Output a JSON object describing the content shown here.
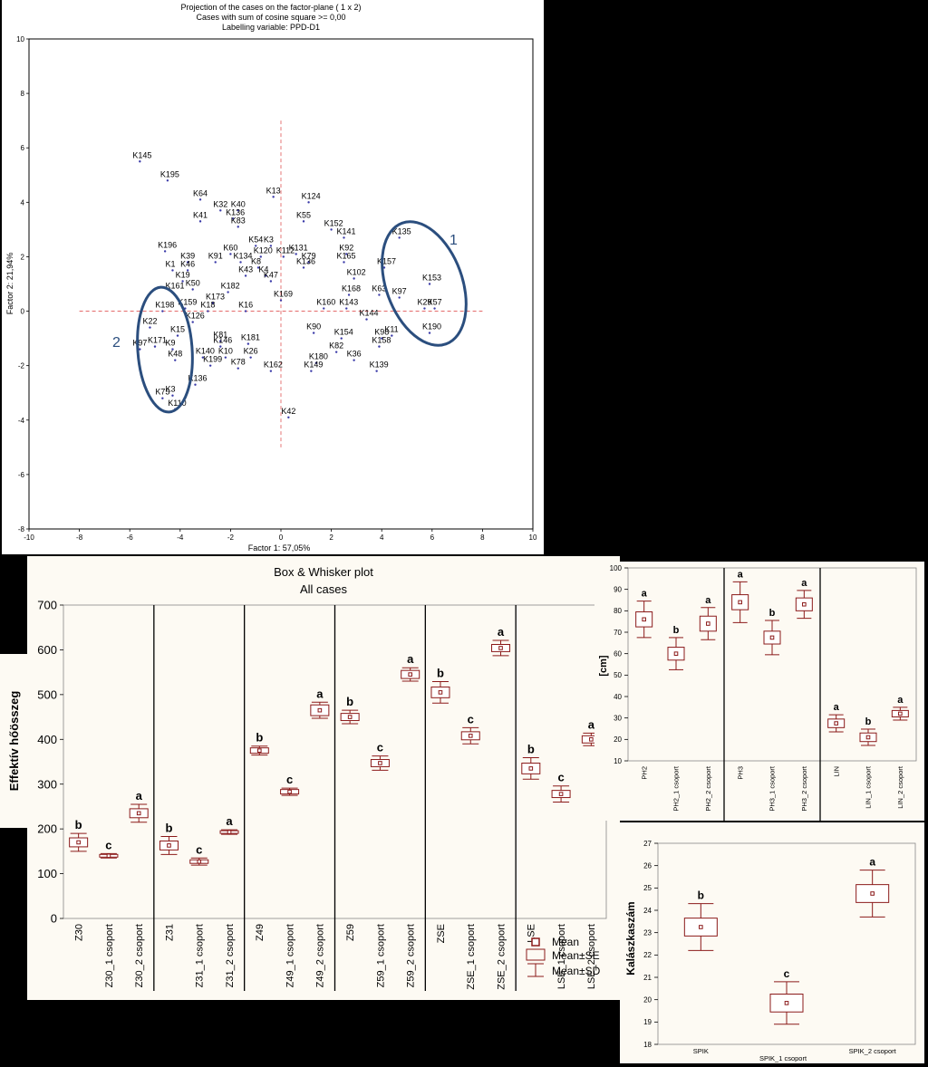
{
  "chart_data": [
    {
      "type": "scatter",
      "title": "Projection of the cases on the factor-plane ( 1 x 2)",
      "subtitle": "Cases with sum of cosine square >= 0,00",
      "subtitle2": "Labelling variable: PPD-D1",
      "xlabel": "Factor 1: 57,05%",
      "ylabel": "Factor 2: 21,94%",
      "xlim": [
        -10,
        10
      ],
      "ylim": [
        -8,
        10
      ],
      "xticks": [
        "-10",
        "-8",
        "-6",
        "-4",
        "-2",
        "0",
        "2",
        "4",
        "6",
        "8",
        "10"
      ],
      "yticks": [
        "-8",
        "-6",
        "-4",
        "-2",
        "0",
        "2",
        "4",
        "6",
        "8",
        "10"
      ],
      "group_labels": [
        "1",
        "2"
      ],
      "points": [
        {
          "label": "K145",
          "x": -5.6,
          "y": 5.5
        },
        {
          "label": "K195",
          "x": -4.5,
          "y": 4.8
        },
        {
          "label": "K64",
          "x": -3.2,
          "y": 4.1
        },
        {
          "label": "K13",
          "x": -0.3,
          "y": 4.2
        },
        {
          "label": "K124",
          "x": 1.1,
          "y": 4.0
        },
        {
          "label": "K32",
          "x": -2.4,
          "y": 3.7
        },
        {
          "label": "K40",
          "x": -1.7,
          "y": 3.7
        },
        {
          "label": "K41",
          "x": -3.2,
          "y": 3.3
        },
        {
          "label": "K136",
          "x": -1.9,
          "y": 3.4
        },
        {
          "label": "K55",
          "x": 0.9,
          "y": 3.3
        },
        {
          "label": "K83",
          "x": -1.7,
          "y": 3.1
        },
        {
          "label": "K152",
          "x": 2.0,
          "y": 3.0
        },
        {
          "label": "K141",
          "x": 2.5,
          "y": 2.7
        },
        {
          "label": "K135",
          "x": 4.7,
          "y": 2.7
        },
        {
          "label": "K54",
          "x": -1.0,
          "y": 2.4
        },
        {
          "label": "K3",
          "x": -0.4,
          "y": 2.4
        },
        {
          "label": "K196",
          "x": -4.6,
          "y": 2.2
        },
        {
          "label": "K60",
          "x": -2.0,
          "y": 2.1
        },
        {
          "label": "K131",
          "x": 0.6,
          "y": 2.1
        },
        {
          "label": "K92",
          "x": 2.6,
          "y": 2.1
        },
        {
          "label": "K120",
          "x": -0.8,
          "y": 2.0
        },
        {
          "label": "K112",
          "x": 0.1,
          "y": 2.0
        },
        {
          "label": "K39",
          "x": -3.7,
          "y": 1.8
        },
        {
          "label": "K91",
          "x": -2.6,
          "y": 1.8
        },
        {
          "label": "K134",
          "x": -1.6,
          "y": 1.8
        },
        {
          "label": "K79",
          "x": 1.1,
          "y": 1.8
        },
        {
          "label": "K165",
          "x": 2.5,
          "y": 1.8
        },
        {
          "label": "K157",
          "x": 4.1,
          "y": 1.6
        },
        {
          "label": "K136",
          "x": 0.9,
          "y": 1.6
        },
        {
          "label": "K8",
          "x": -0.9,
          "y": 1.6
        },
        {
          "label": "K1",
          "x": -4.3,
          "y": 1.5
        },
        {
          "label": "K46",
          "x": -3.7,
          "y": 1.5
        },
        {
          "label": "K43",
          "x": -1.4,
          "y": 1.3
        },
        {
          "label": "K4",
          "x": -0.6,
          "y": 1.3
        },
        {
          "label": "K102",
          "x": 2.9,
          "y": 1.2
        },
        {
          "label": "K153",
          "x": 5.9,
          "y": 1.0
        },
        {
          "label": "K19",
          "x": -3.9,
          "y": 1.1
        },
        {
          "label": "K47",
          "x": -0.4,
          "y": 1.1
        },
        {
          "label": "K50",
          "x": -3.5,
          "y": 0.8
        },
        {
          "label": "K161",
          "x": -4.3,
          "y": 0.7
        },
        {
          "label": "K182",
          "x": -2.1,
          "y": 0.7
        },
        {
          "label": "K168",
          "x": 2.7,
          "y": 0.6
        },
        {
          "label": "K63",
          "x": 3.9,
          "y": 0.6
        },
        {
          "label": "K97",
          "x": 4.7,
          "y": 0.5
        },
        {
          "label": "K169",
          "x": 0.0,
          "y": 0.4
        },
        {
          "label": "K173",
          "x": -2.7,
          "y": 0.3
        },
        {
          "label": "K160",
          "x": 1.7,
          "y": 0.1
        },
        {
          "label": "K159",
          "x": -3.8,
          "y": 0.1
        },
        {
          "label": "K198",
          "x": -4.7,
          "y": 0.0
        },
        {
          "label": "K18",
          "x": -2.9,
          "y": 0.0
        },
        {
          "label": "K16",
          "x": -1.4,
          "y": 0.0
        },
        {
          "label": "K29",
          "x": 5.7,
          "y": 0.1
        },
        {
          "label": "K57",
          "x": 6.1,
          "y": 0.1
        },
        {
          "label": "K143",
          "x": 2.6,
          "y": 0.1
        },
        {
          "label": "K144",
          "x": 3.4,
          "y": -0.3
        },
        {
          "label": "K126",
          "x": -3.5,
          "y": -0.4
        },
        {
          "label": "K22",
          "x": -5.2,
          "y": -0.6
        },
        {
          "label": "K15",
          "x": -4.1,
          "y": -0.9
        },
        {
          "label": "K190",
          "x": 5.9,
          "y": -0.8
        },
        {
          "label": "K11",
          "x": 4.4,
          "y": -0.9
        },
        {
          "label": "K98",
          "x": 4.0,
          "y": -1.0
        },
        {
          "label": "K154",
          "x": 2.4,
          "y": -1.0
        },
        {
          "label": "K90",
          "x": 1.3,
          "y": -0.8
        },
        {
          "label": "K81",
          "x": -2.4,
          "y": -1.1
        },
        {
          "label": "K181",
          "x": -1.3,
          "y": -1.2
        },
        {
          "label": "K158",
          "x": 3.9,
          "y": -1.3
        },
        {
          "label": "K171",
          "x": -5.0,
          "y": -1.3
        },
        {
          "label": "K97",
          "x": -5.6,
          "y": -1.4
        },
        {
          "label": "K9",
          "x": -4.3,
          "y": -1.4
        },
        {
          "label": "K146",
          "x": -2.4,
          "y": -1.3
        },
        {
          "label": "K82",
          "x": 2.2,
          "y": -1.5
        },
        {
          "label": "K48",
          "x": -4.2,
          "y": -1.8
        },
        {
          "label": "K140",
          "x": -3.1,
          "y": -1.7
        },
        {
          "label": "K10",
          "x": -2.2,
          "y": -1.7
        },
        {
          "label": "K26",
          "x": -1.2,
          "y": -1.7
        },
        {
          "label": "K36",
          "x": 2.9,
          "y": -1.8
        },
        {
          "label": "K180",
          "x": 1.4,
          "y": -1.9
        },
        {
          "label": "K199",
          "x": -2.8,
          "y": -2.0
        },
        {
          "label": "K78",
          "x": -1.7,
          "y": -2.1
        },
        {
          "label": "K139",
          "x": 3.8,
          "y": -2.2
        },
        {
          "label": "K162",
          "x": -0.4,
          "y": -2.2
        },
        {
          "label": "K149",
          "x": 1.2,
          "y": -2.2
        },
        {
          "label": "K136",
          "x": -3.4,
          "y": -2.7
        },
        {
          "label": "K3",
          "x": -4.3,
          "y": -3.1
        },
        {
          "label": "K75",
          "x": -4.7,
          "y": -3.2
        },
        {
          "label": "K110",
          "x": -4.2,
          "y": -3.6
        },
        {
          "label": "K42",
          "x": 0.3,
          "y": -3.9
        }
      ]
    },
    {
      "type": "box",
      "title": "Box & Whisker plot",
      "subtitle": "All cases",
      "ylabel": "Effektív hőösszeg",
      "ylim": [
        0,
        700
      ],
      "yticks": [
        "0",
        "100",
        "200",
        "300",
        "400",
        "500",
        "600",
        "700"
      ],
      "legend": [
        "Mean",
        "Mean±SE",
        "Mean±SD"
      ],
      "groups": [
        {
          "categories": [
            "Z30",
            "Z30_1 csoport",
            "Z30_2 csoport"
          ],
          "means": [
            170,
            140,
            235
          ],
          "se": [
            10,
            3,
            10
          ],
          "sd": [
            20,
            5,
            20
          ],
          "letters": [
            "b",
            "c",
            "a"
          ]
        },
        {
          "categories": [
            "Z31",
            "Z31_1 csoport",
            "Z31_2 csoport"
          ],
          "means": [
            163,
            127,
            193
          ],
          "se": [
            10,
            4,
            3
          ],
          "sd": [
            20,
            8,
            5
          ],
          "letters": [
            "b",
            "c",
            "a"
          ]
        },
        {
          "categories": [
            "Z49",
            "Z49_1 csoport",
            "Z49_2 csoport"
          ],
          "means": [
            375,
            283,
            465
          ],
          "se": [
            6,
            5,
            12
          ],
          "sd": [
            10,
            8,
            18
          ],
          "letters": [
            "b",
            "c",
            "a"
          ]
        },
        {
          "categories": [
            "Z59",
            "Z59_1 csoport",
            "Z59_2 csoport"
          ],
          "means": [
            450,
            347,
            545
          ],
          "se": [
            8,
            8,
            9
          ],
          "sd": [
            15,
            16,
            15
          ],
          "letters": [
            "b",
            "c",
            "a"
          ]
        },
        {
          "categories": [
            "ZSE",
            "ZSE_1 csoport",
            "ZSE_2 csoport"
          ],
          "means": [
            505,
            408,
            604
          ],
          "se": [
            12,
            9,
            8
          ],
          "sd": [
            24,
            18,
            17
          ],
          "letters": [
            "b",
            "c",
            "a"
          ]
        },
        {
          "categories": [
            "LSE",
            "LSE_1 csoport",
            "LSE_2 csoport"
          ],
          "means": [
            335,
            278,
            400
          ],
          "se": [
            12,
            8,
            8
          ],
          "sd": [
            24,
            18,
            14
          ],
          "letters": [
            "b",
            "c",
            "a"
          ]
        }
      ]
    },
    {
      "type": "box",
      "ylabel": "[cm]",
      "ylim": [
        10,
        100
      ],
      "yticks": [
        "10",
        "20",
        "30",
        "40",
        "50",
        "60",
        "70",
        "80",
        "90",
        "100"
      ],
      "groups": [
        {
          "categories": [
            "PH2",
            "PH2_1 csoport",
            "PH2_2 csoport"
          ],
          "means": [
            76,
            60,
            74
          ],
          "se": [
            3.5,
            3,
            3.5
          ],
          "sd": [
            8.5,
            7.5,
            7.5
          ],
          "letters": [
            "a",
            "b",
            "a"
          ]
        },
        {
          "categories": [
            "PH3",
            "PH3_1 csoport",
            "PH3_2 csoport"
          ],
          "means": [
            84,
            67.5,
            83
          ],
          "se": [
            3.5,
            3,
            3
          ],
          "sd": [
            9.5,
            8,
            6.5
          ],
          "letters": [
            "a",
            "b",
            "a"
          ]
        },
        {
          "categories": [
            "LIN",
            "LIN_1 csoport",
            "LIN_2 csoport"
          ],
          "means": [
            27.5,
            21,
            32
          ],
          "se": [
            2,
            2,
            1.5
          ],
          "sd": [
            4,
            3.8,
            3
          ],
          "letters": [
            "a",
            "b",
            "a"
          ]
        }
      ]
    },
    {
      "type": "box",
      "ylabel": "Kalászkaszám",
      "xlabel": "SPIK_1 csoport",
      "ylim": [
        18,
        27
      ],
      "yticks": [
        "18",
        "19",
        "20",
        "21",
        "22",
        "23",
        "24",
        "25",
        "26",
        "27"
      ],
      "categories": [
        "SPIK",
        "SPIK_1 csoport",
        "SPIK_2 csoport"
      ],
      "x_tick_labels": [
        "SPIK",
        "SPIK_2 csoport"
      ],
      "means": [
        23.25,
        19.85,
        24.75
      ],
      "se": [
        0.4,
        0.4,
        0.4
      ],
      "sd": [
        1.05,
        0.95,
        1.05
      ],
      "letters": [
        "b",
        "c",
        "a"
      ]
    }
  ]
}
